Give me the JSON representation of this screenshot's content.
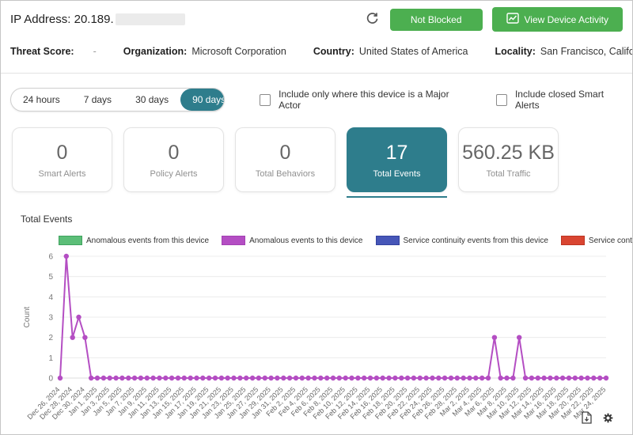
{
  "header": {
    "ip_label": "IP Address: 20.189.",
    "not_blocked_label": "Not Blocked",
    "view_activity_label": "View Device Activity"
  },
  "info": {
    "threat_score_label": "Threat Score:",
    "threat_score_value": "-",
    "organization_label": "Organization:",
    "organization_value": "Microsoft Corporation",
    "country_label": "Country:",
    "country_value": "United States of America",
    "locality_label": "Locality:",
    "locality_value": "San Francisco, California"
  },
  "filters": {
    "ranges": [
      {
        "label": "24 hours",
        "selected": false
      },
      {
        "label": "7 days",
        "selected": false
      },
      {
        "label": "30 days",
        "selected": false
      },
      {
        "label": "90 days",
        "selected": true
      }
    ],
    "major_actor_label": "Include only where this device is a Major Actor",
    "closed_alerts_label": "Include closed Smart Alerts"
  },
  "stat_cards": [
    {
      "value": "0",
      "label": "Smart Alerts",
      "selected": false
    },
    {
      "value": "0",
      "label": "Policy Alerts",
      "selected": false
    },
    {
      "value": "0",
      "label": "Total Behaviors",
      "selected": false
    },
    {
      "value": "17",
      "label": "Total Events",
      "selected": true
    },
    {
      "value": "560.25 KB",
      "label": "Total Traffic",
      "selected": false
    }
  ],
  "chart_section": {
    "title": "Total Events"
  },
  "chart_data": {
    "type": "line",
    "title": "Total Events",
    "xlabel": "",
    "ylabel": "Count",
    "ylim": [
      0,
      6
    ],
    "yticks": [
      0,
      1,
      2,
      3,
      4,
      5,
      6
    ],
    "grid": true,
    "legend_position": "top",
    "x_interval": "daily, labeled every 2 days",
    "x_tick_labels": [
      "Dec 26, 2024",
      "Dec 28, 2024",
      "Dec 30, 2024",
      "Jan 1, 2025",
      "Jan 3, 2025",
      "Jan 5, 2025",
      "Jan 7, 2025",
      "Jan 9, 2025",
      "Jan 11, 2025",
      "Jan 13, 2025",
      "Jan 15, 2025",
      "Jan 17, 2025",
      "Jan 19, 2025",
      "Jan 21, 2025",
      "Jan 23, 2025",
      "Jan 25, 2025",
      "Jan 27, 2025",
      "Jan 29, 2025",
      "Jan 31, 2025",
      "Feb 2, 2025",
      "Feb 4, 2025",
      "Feb 6, 2025",
      "Feb 8, 2025",
      "Feb 10, 2025",
      "Feb 12, 2025",
      "Feb 14, 2025",
      "Feb 16, 2025",
      "Feb 18, 2025",
      "Feb 20, 2025",
      "Feb 22, 2025",
      "Feb 24, 2025",
      "Feb 26, 2025",
      "Feb 28, 2025",
      "Mar 2, 2025",
      "Mar 4, 2025",
      "Mar 6, 2025",
      "Mar 8, 2025",
      "Mar 10, 2025",
      "Mar 12, 2025",
      "Mar 14, 2025",
      "Mar 16, 2025",
      "Mar 18, 2025",
      "Mar 20, 2025",
      "Mar 22, 2025",
      "Mar 24, 2025"
    ],
    "series": [
      {
        "name": "Anomalous events from this device",
        "color": "#5CBE78",
        "swatch_border": "#3FA25E",
        "values": null
      },
      {
        "name": "Anomalous events to this device",
        "color": "#B44EC3",
        "swatch_border": "#A341B3",
        "values": [
          0,
          6,
          2,
          3,
          2,
          0,
          0,
          0,
          0,
          0,
          0,
          0,
          0,
          0,
          0,
          0,
          0,
          0,
          0,
          0,
          0,
          0,
          0,
          0,
          0,
          0,
          0,
          0,
          0,
          0,
          0,
          0,
          0,
          0,
          0,
          0,
          0,
          0,
          0,
          0,
          0,
          0,
          0,
          0,
          0,
          0,
          0,
          0,
          0,
          0,
          0,
          0,
          0,
          0,
          0,
          0,
          0,
          0,
          0,
          0,
          0,
          0,
          0,
          0,
          0,
          0,
          0,
          0,
          0,
          0,
          2,
          0,
          0,
          0,
          2,
          0,
          0,
          0,
          0,
          0,
          0,
          0,
          0,
          0,
          0,
          0,
          0,
          0,
          0
        ]
      },
      {
        "name": "Service continuity events from this device",
        "color": "#4656B8",
        "swatch_border": "#33429F",
        "values": null
      },
      {
        "name": "Service continuity events to this device",
        "color": "#D94531",
        "swatch_border": "#BC3423",
        "values": null
      }
    ]
  },
  "colors": {
    "accent_teal": "#2e7d8c",
    "button_green": "#4caf50",
    "line_purple": "#B44EC3"
  }
}
